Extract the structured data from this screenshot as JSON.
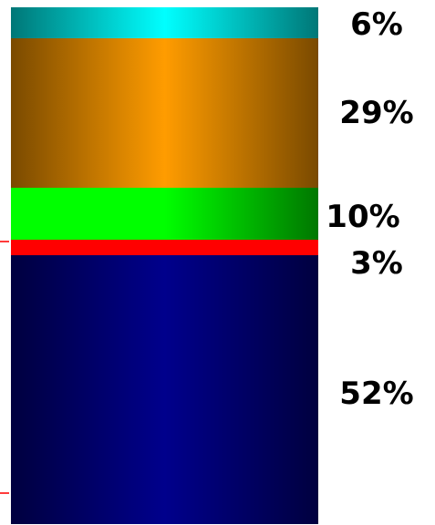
{
  "chart_data": {
    "type": "bar",
    "stacked": true,
    "categories": [
      ""
    ],
    "series": [
      {
        "label": "6%",
        "value": 6,
        "color": "#00ffff"
      },
      {
        "label": "29%",
        "value": 29,
        "color": "#ff9900"
      },
      {
        "label": "10%",
        "value": 10,
        "color": "#00ff00"
      },
      {
        "label": "3%",
        "value": 3,
        "color": "#ff0000"
      },
      {
        "label": "52%",
        "value": 52,
        "color": "#000099"
      }
    ],
    "gradients": {
      "6%": [
        "#007777",
        "#00ffff",
        "#007777"
      ],
      "29%": [
        "#7a4a00",
        "#ff9c00",
        "#7a4a00"
      ],
      "10%": [
        "#00ff00",
        "#00ff00",
        "#007700"
      ],
      "3%": [
        "#ff0000",
        "#ff0000",
        "#ff0000"
      ],
      "52%": [
        "#00003f",
        "#00008c",
        "#00003f"
      ]
    },
    "ylim": [
      0,
      100
    ],
    "legend": "none",
    "grid": false
  }
}
